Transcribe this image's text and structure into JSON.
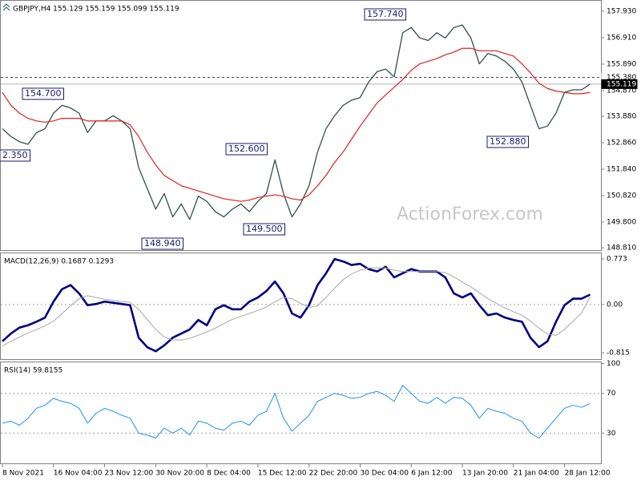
{
  "chart_data": [
    {
      "type": "line",
      "title": "GBPJPY,H4 155.129 155.159 155.099 155.119",
      "watermark": "ActionForex.com",
      "ylim": [
        148.72,
        158.33
      ],
      "yticks": [
        {
          "value": 157.93,
          "label": "157.930"
        },
        {
          "value": 156.91,
          "label": "156.910"
        },
        {
          "value": 155.89,
          "label": "155.890"
        },
        {
          "value": 154.87,
          "label": "154.870"
        },
        {
          "value": 153.88,
          "label": "153.880"
        },
        {
          "value": 152.86,
          "label": "152.860"
        },
        {
          "value": 151.84,
          "label": "151.840"
        },
        {
          "value": 150.82,
          "label": "150.820"
        },
        {
          "value": 149.8,
          "label": "149.800"
        },
        {
          "value": 148.81,
          "label": "148.810"
        }
      ],
      "price_lines": [
        {
          "value": 155.38,
          "label": "155.380",
          "style": "dashed"
        },
        {
          "value": 155.119,
          "label": "155.119",
          "style": "solid"
        }
      ],
      "annotations": [
        "154.700",
        "152.600",
        "157.740",
        "152.880",
        "148.940",
        "149.500",
        "2.350"
      ],
      "series": [
        {
          "name": "GBPJPY",
          "color": "#2f4f4f",
          "width": 1.3,
          "values": [
            153.4,
            153.1,
            152.9,
            152.8,
            153.25,
            153.4,
            154.0,
            154.3,
            154.2,
            154.0,
            153.25,
            153.7,
            153.7,
            153.9,
            153.7,
            153.4,
            151.9,
            151.1,
            150.3,
            150.9,
            150.0,
            150.5,
            149.9,
            150.8,
            150.6,
            150.2,
            150.0,
            150.3,
            150.5,
            150.2,
            150.6,
            150.9,
            152.2,
            150.9,
            150.0,
            150.5,
            151.2,
            152.5,
            153.4,
            153.9,
            154.3,
            154.5,
            154.6,
            155.2,
            155.6,
            155.7,
            155.4,
            157.1,
            157.3,
            156.9,
            156.8,
            157.1,
            156.9,
            157.3,
            157.4,
            156.9,
            155.9,
            156.3,
            156.2,
            156.0,
            155.7,
            155.2,
            154.3,
            153.4,
            153.5,
            154.0,
            154.8,
            154.9,
            154.9,
            155.119
          ]
        },
        {
          "name": "MA",
          "color": "#e02020",
          "width": 1.2,
          "values": [
            154.8,
            154.3,
            154.0,
            153.8,
            153.7,
            153.65,
            153.7,
            153.8,
            153.8,
            153.8,
            153.7,
            153.7,
            153.7,
            153.7,
            153.7,
            153.55,
            153.1,
            152.5,
            152.0,
            151.6,
            151.4,
            151.2,
            151.1,
            151.0,
            150.9,
            150.8,
            150.7,
            150.65,
            150.6,
            150.65,
            150.75,
            150.8,
            150.85,
            150.8,
            150.7,
            150.65,
            150.85,
            151.2,
            151.6,
            152.1,
            152.5,
            153.0,
            153.5,
            153.95,
            154.4,
            154.7,
            155.0,
            155.3,
            155.65,
            155.9,
            156.0,
            156.1,
            156.25,
            156.35,
            156.5,
            156.5,
            156.4,
            156.4,
            156.4,
            156.3,
            156.2,
            155.9,
            155.55,
            155.15,
            154.95,
            154.85,
            154.8,
            154.75,
            154.75,
            154.8
          ]
        }
      ]
    },
    {
      "type": "line",
      "title": "MACD(12,26,9) 0.1687 0.1293",
      "ylim": [
        -0.923,
        0.867
      ],
      "yticks": [
        0.773,
        {
          "value": 0,
          "label": "0.00"
        },
        -0.815
      ],
      "levels": [
        0
      ],
      "series": [
        {
          "name": "MACD",
          "color": "#000080",
          "width": 2.6,
          "values": [
            -0.62,
            -0.49,
            -0.39,
            -0.35,
            -0.29,
            -0.22,
            0.05,
            0.26,
            0.33,
            0.19,
            -0.01,
            0.01,
            0.05,
            0.03,
            0.01,
            -0.01,
            -0.56,
            -0.72,
            -0.79,
            -0.69,
            -0.56,
            -0.49,
            -0.42,
            -0.26,
            -0.35,
            -0.08,
            -0.01,
            -0.08,
            -0.08,
            0.05,
            0.12,
            0.23,
            0.39,
            0.19,
            -0.15,
            -0.22,
            -0.01,
            0.33,
            0.53,
            0.77,
            0.73,
            0.67,
            0.69,
            0.6,
            0.56,
            0.64,
            0.46,
            0.53,
            0.6,
            0.56,
            0.56,
            0.56,
            0.46,
            0.19,
            0.12,
            0.19,
            -0.01,
            -0.18,
            -0.15,
            -0.22,
            -0.26,
            -0.29,
            -0.56,
            -0.72,
            -0.62,
            -0.29,
            -0.01,
            0.1,
            0.1,
            0.1687
          ]
        },
        {
          "name": "Signal",
          "color": "#a8a8a8",
          "width": 1,
          "values": [
            -0.7,
            -0.62,
            -0.55,
            -0.48,
            -0.42,
            -0.36,
            -0.28,
            -0.15,
            -0.02,
            0.1,
            0.15,
            0.12,
            0.09,
            0.07,
            0.05,
            0.04,
            -0.08,
            -0.25,
            -0.42,
            -0.55,
            -0.6,
            -0.6,
            -0.57,
            -0.52,
            -0.46,
            -0.4,
            -0.32,
            -0.25,
            -0.2,
            -0.15,
            -0.1,
            -0.04,
            0.05,
            0.12,
            0.1,
            0.02,
            -0.05,
            -0.02,
            0.12,
            0.28,
            0.42,
            0.52,
            0.58,
            0.62,
            0.62,
            0.62,
            0.58,
            0.56,
            0.56,
            0.56,
            0.56,
            0.56,
            0.54,
            0.47,
            0.38,
            0.3,
            0.2,
            0.1,
            0.02,
            -0.06,
            -0.12,
            -0.18,
            -0.28,
            -0.4,
            -0.5,
            -0.52,
            -0.42,
            -0.28,
            -0.14,
            0.1293
          ]
        }
      ]
    },
    {
      "type": "line",
      "title": "RSI(14) 59.8155",
      "ylim": [
        -0.4,
        101.2
      ],
      "yticks": [
        100,
        70,
        30
      ],
      "levels": [
        70,
        30
      ],
      "categories": [
        "8 Nov 2021",
        null,
        null,
        null,
        null,
        null,
        "16 Nov 04:00",
        null,
        null,
        null,
        null,
        null,
        "23 Nov 12:00",
        null,
        null,
        null,
        null,
        null,
        "30 Nov 20:00",
        null,
        null,
        null,
        null,
        null,
        "8 Dec 04:00",
        null,
        null,
        null,
        null,
        null,
        "15 Dec 12:00",
        null,
        null,
        null,
        null,
        null,
        "22 Dec 20:00",
        null,
        null,
        null,
        null,
        null,
        "30 Dec 04:00",
        null,
        null,
        null,
        null,
        null,
        "6 Jan 12:00",
        null,
        null,
        null,
        null,
        null,
        "13 Jan 20:00",
        null,
        null,
        null,
        null,
        null,
        "21 Jan 04:00",
        null,
        null,
        null,
        null,
        null,
        "28 Jan 12:00",
        null,
        null,
        null
      ],
      "series": [
        {
          "name": "RSI",
          "color": "#1e90ff",
          "width": 1,
          "values": [
            40,
            42,
            38,
            45,
            55,
            58,
            65,
            62,
            60,
            55,
            40,
            50,
            55,
            52,
            48,
            45,
            30,
            28,
            25,
            35,
            30,
            35,
            28,
            42,
            40,
            35,
            33,
            40,
            42,
            38,
            48,
            52,
            70,
            45,
            32,
            40,
            48,
            62,
            66,
            70,
            68,
            65,
            66,
            70,
            72,
            68,
            62,
            78,
            70,
            62,
            60,
            66,
            60,
            66,
            65,
            58,
            45,
            55,
            52,
            50,
            45,
            42,
            30,
            25,
            35,
            45,
            55,
            58,
            56,
            59.8155
          ]
        }
      ]
    }
  ]
}
